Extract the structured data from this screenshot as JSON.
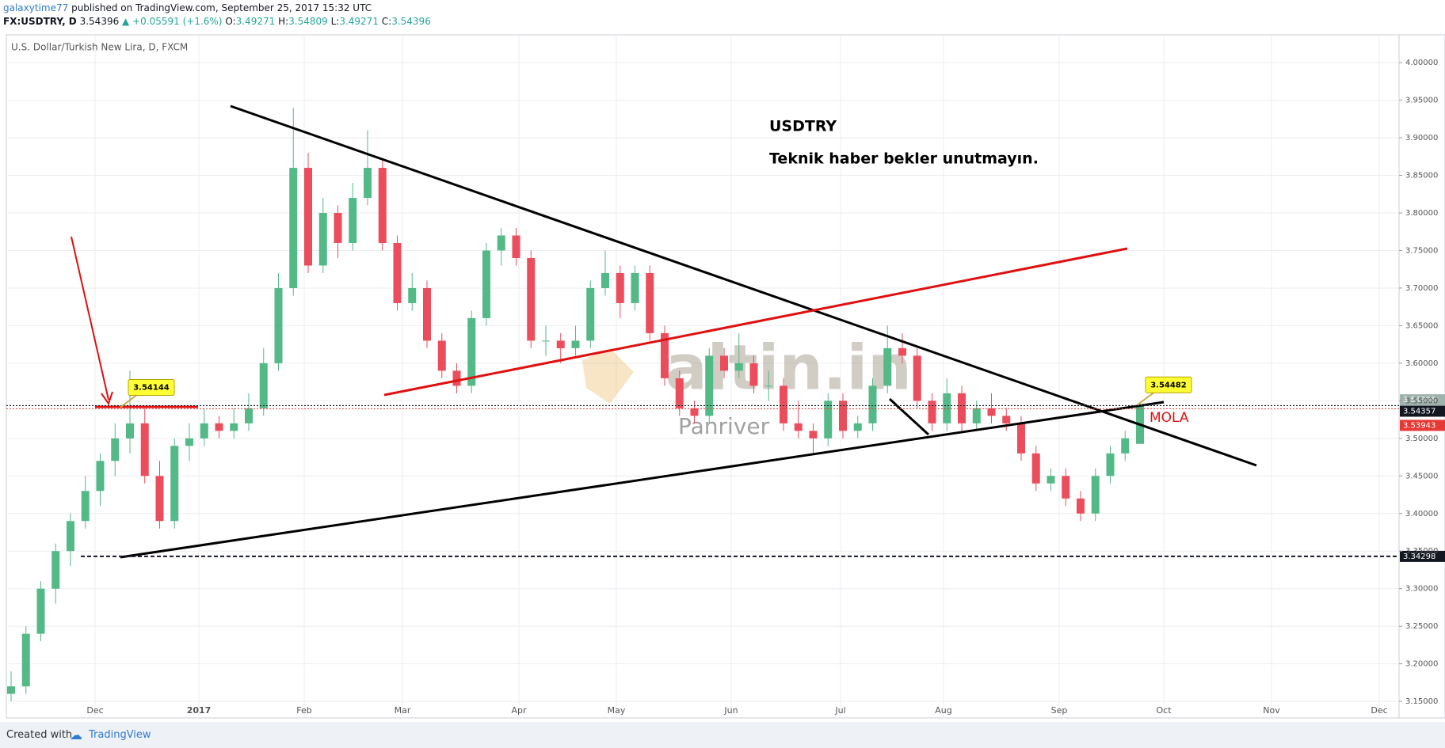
{
  "header": {
    "author": "galaxytime77",
    "published": "published on TradingView.com, September 25, 2017 15:32 UTC",
    "symbol": "FX:USDTRY, D",
    "price": "3.54396",
    "change": "▲ +0.05591 (+1.6%)",
    "o_label": "O:",
    "o": "3.49271",
    "h_label": "H:",
    "h": "3.54809",
    "l_label": "L:",
    "l": "3.49271",
    "c_label": "C:",
    "c": "3.54396"
  },
  "chart_data": {
    "type": "candlestick",
    "title": "U.S. Dollar/Turkish New Lira, D, FXCM",
    "x_labels": [
      "Dec",
      "2017",
      "Feb",
      "Mar",
      "Apr",
      "May",
      "Jun",
      "Jul",
      "Aug",
      "Sep",
      "Oct",
      "Nov",
      "Dec"
    ],
    "candles": [
      [
        3.16,
        3.19,
        3.15,
        3.17
      ],
      [
        3.17,
        3.25,
        3.16,
        3.24
      ],
      [
        3.24,
        3.31,
        3.23,
        3.3
      ],
      [
        3.3,
        3.36,
        3.28,
        3.35
      ],
      [
        3.35,
        3.4,
        3.33,
        3.39
      ],
      [
        3.39,
        3.45,
        3.38,
        3.43
      ],
      [
        3.43,
        3.48,
        3.41,
        3.47
      ],
      [
        3.47,
        3.52,
        3.45,
        3.5
      ],
      [
        3.5,
        3.59,
        3.48,
        3.52
      ],
      [
        3.52,
        3.54,
        3.44,
        3.45
      ],
      [
        3.45,
        3.47,
        3.38,
        3.39
      ],
      [
        3.39,
        3.5,
        3.38,
        3.49
      ],
      [
        3.49,
        3.52,
        3.47,
        3.5
      ],
      [
        3.5,
        3.54,
        3.49,
        3.52
      ],
      [
        3.52,
        3.53,
        3.5,
        3.51
      ],
      [
        3.51,
        3.54,
        3.5,
        3.52
      ],
      [
        3.52,
        3.56,
        3.51,
        3.54
      ],
      [
        3.54,
        3.62,
        3.53,
        3.6
      ],
      [
        3.6,
        3.72,
        3.59,
        3.7
      ],
      [
        3.7,
        3.94,
        3.69,
        3.86
      ],
      [
        3.86,
        3.88,
        3.72,
        3.73
      ],
      [
        3.73,
        3.82,
        3.72,
        3.8
      ],
      [
        3.8,
        3.81,
        3.74,
        3.76
      ],
      [
        3.76,
        3.84,
        3.75,
        3.82
      ],
      [
        3.82,
        3.91,
        3.81,
        3.86
      ],
      [
        3.86,
        3.87,
        3.75,
        3.76
      ],
      [
        3.76,
        3.77,
        3.67,
        3.68
      ],
      [
        3.68,
        3.72,
        3.67,
        3.7
      ],
      [
        3.7,
        3.71,
        3.62,
        3.63
      ],
      [
        3.63,
        3.64,
        3.58,
        3.59
      ],
      [
        3.59,
        3.6,
        3.56,
        3.57
      ],
      [
        3.57,
        3.67,
        3.56,
        3.66
      ],
      [
        3.66,
        3.76,
        3.65,
        3.75
      ],
      [
        3.75,
        3.78,
        3.73,
        3.77
      ],
      [
        3.77,
        3.78,
        3.73,
        3.74
      ],
      [
        3.74,
        3.75,
        3.62,
        3.63
      ],
      [
        3.63,
        3.65,
        3.61,
        3.63
      ],
      [
        3.63,
        3.64,
        3.6,
        3.62
      ],
      [
        3.62,
        3.65,
        3.61,
        3.63
      ],
      [
        3.63,
        3.71,
        3.62,
        3.7
      ],
      [
        3.7,
        3.75,
        3.69,
        3.72
      ],
      [
        3.72,
        3.73,
        3.66,
        3.68
      ],
      [
        3.68,
        3.73,
        3.67,
        3.72
      ],
      [
        3.72,
        3.73,
        3.63,
        3.64
      ],
      [
        3.64,
        3.65,
        3.57,
        3.58
      ],
      [
        3.58,
        3.59,
        3.53,
        3.54
      ],
      [
        3.54,
        3.55,
        3.52,
        3.53
      ],
      [
        3.53,
        3.62,
        3.52,
        3.61
      ],
      [
        3.61,
        3.62,
        3.58,
        3.59
      ],
      [
        3.59,
        3.64,
        3.58,
        3.6
      ],
      [
        3.6,
        3.61,
        3.56,
        3.57
      ],
      [
        3.57,
        3.59,
        3.55,
        3.57
      ],
      [
        3.57,
        3.58,
        3.51,
        3.52
      ],
      [
        3.52,
        3.55,
        3.5,
        3.51
      ],
      [
        3.51,
        3.52,
        3.48,
        3.5
      ],
      [
        3.5,
        3.56,
        3.49,
        3.55
      ],
      [
        3.55,
        3.56,
        3.5,
        3.51
      ],
      [
        3.51,
        3.53,
        3.5,
        3.52
      ],
      [
        3.52,
        3.58,
        3.51,
        3.57
      ],
      [
        3.57,
        3.65,
        3.56,
        3.62
      ],
      [
        3.62,
        3.64,
        3.6,
        3.61
      ],
      [
        3.61,
        3.62,
        3.54,
        3.55
      ],
      [
        3.55,
        3.56,
        3.51,
        3.52
      ],
      [
        3.52,
        3.58,
        3.51,
        3.56
      ],
      [
        3.56,
        3.57,
        3.51,
        3.52
      ],
      [
        3.52,
        3.55,
        3.51,
        3.54
      ],
      [
        3.54,
        3.56,
        3.52,
        3.53
      ],
      [
        3.53,
        3.54,
        3.51,
        3.52
      ],
      [
        3.52,
        3.53,
        3.47,
        3.48
      ],
      [
        3.48,
        3.49,
        3.43,
        3.44
      ],
      [
        3.44,
        3.46,
        3.43,
        3.45
      ],
      [
        3.45,
        3.46,
        3.41,
        3.42
      ],
      [
        3.42,
        3.43,
        3.39,
        3.4
      ],
      [
        3.4,
        3.46,
        3.39,
        3.45
      ],
      [
        3.45,
        3.49,
        3.44,
        3.48
      ],
      [
        3.48,
        3.51,
        3.47,
        3.5
      ],
      [
        3.49271,
        3.54809,
        3.49271,
        3.54396
      ]
    ],
    "up_color": "#53b987",
    "down_color": "#eb4d5c",
    "ylim": [
      3.128,
      4.037
    ],
    "yticks": [
      {
        "value": 3.15,
        "label": "3.15000"
      },
      {
        "value": 3.2,
        "label": "3.20000"
      },
      {
        "value": 3.25,
        "label": "3.25000"
      },
      {
        "value": 3.3,
        "label": "3.30000"
      },
      {
        "value": 3.35,
        "label": "3.35000"
      },
      {
        "value": 3.4,
        "label": "3.40000"
      },
      {
        "value": 3.45,
        "label": "3.45000"
      },
      {
        "value": 3.5,
        "label": "3.50000"
      },
      {
        "value": 3.55,
        "label": "3.55000"
      },
      {
        "value": 3.6,
        "label": "3.60000"
      },
      {
        "value": 3.65,
        "label": "3.65000"
      },
      {
        "value": 3.7,
        "label": "3.70000"
      },
      {
        "value": 3.75,
        "label": "3.75000"
      },
      {
        "value": 3.8,
        "label": "3.80000"
      },
      {
        "value": 3.85,
        "label": "3.85000"
      },
      {
        "value": 3.9,
        "label": "3.90000"
      },
      {
        "value": 3.95,
        "label": "3.95000"
      },
      {
        "value": 4.0,
        "label": "4.00000"
      }
    ],
    "grid": true,
    "levels": [
      {
        "value": 3.54396,
        "color": "#9fb3ad"
      },
      {
        "value": 3.54357,
        "color": "#131722"
      },
      {
        "value": 3.53943,
        "color": "#e53935"
      },
      {
        "value": 3.34298,
        "color": "#131722"
      }
    ],
    "callouts": [
      {
        "value": 3.54144
      },
      {
        "value": 3.54482
      }
    ],
    "annotations": {
      "symbol": "USDTRY",
      "note": "Teknik haber bekler unutmayın.",
      "mola": "MOLA"
    },
    "watermark": [
      "altin.in",
      "Panriver"
    ]
  },
  "footer": {
    "created": "Created with",
    "brand": "TradingView"
  }
}
